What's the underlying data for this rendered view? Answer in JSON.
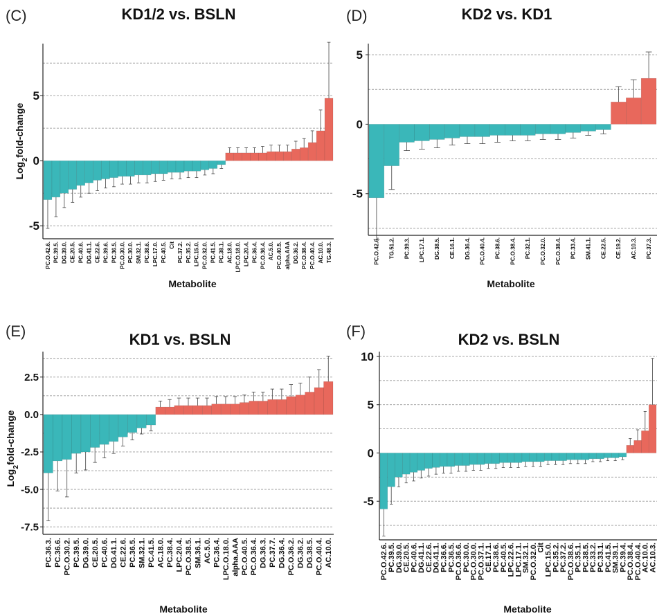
{
  "colors": {
    "negative": "#3ab7b9",
    "positive": "#e8685c",
    "grid": "#9a9a9a",
    "axis": "#222222"
  },
  "chart_data": [
    {
      "panel": "(C)",
      "type": "bar",
      "title": "KD1/2 vs. BSLN",
      "xlabel": "Metabolite",
      "ylabel": "Log2fold-change",
      "yticks": [
        "-5",
        "0",
        "5"
      ],
      "ylim": [
        -6,
        9
      ],
      "grid": true,
      "categories": [
        "PC.O.42.6.",
        "PC.39.5.",
        "DG.39.0.",
        "CE.20.5.",
        "PC.40.6.",
        "DG.41.1.",
        "CE.22.6.",
        "PC.39.6.",
        "PC.36.5.",
        "PC.O.30.0.",
        "PC.30.0.",
        "SM.32.1.",
        "PC.38.6.",
        "LPC.17.0.",
        "PC.40.5.",
        "Cit",
        "PC.37.2.",
        "PC.35.2.",
        "LPC.15.0.",
        "PC.O.32.0.",
        "PC.41.5.",
        "PC.38.1.",
        "AC.18.0.",
        "LPC.O.18.0.",
        "LPC.20.4.",
        "PC.36.4.",
        "PC.O.36.4.",
        "AC.5.0.",
        "PC.O.40.5.",
        "alpha.AAA",
        "DG.36.2.",
        "PC.O.38.4.",
        "PC.O.40.4.",
        "AC.10.0.",
        "TG.48.3."
      ],
      "values": [
        -3.0,
        -2.8,
        -2.5,
        -2.2,
        -1.9,
        -1.7,
        -1.5,
        -1.4,
        -1.3,
        -1.2,
        -1.2,
        -1.1,
        -1.1,
        -1.0,
        -1.0,
        -0.9,
        -0.9,
        -0.8,
        -0.8,
        -0.7,
        -0.6,
        -0.3,
        0.6,
        0.6,
        0.6,
        0.6,
        0.6,
        0.7,
        0.7,
        0.7,
        0.9,
        1.0,
        1.4,
        2.3,
        4.8
      ],
      "errors": [
        2.2,
        1.5,
        1.1,
        1.0,
        0.9,
        0.8,
        0.8,
        0.7,
        0.7,
        0.6,
        0.6,
        0.6,
        0.6,
        0.6,
        0.5,
        0.5,
        0.5,
        0.5,
        0.5,
        0.4,
        0.4,
        0.3,
        0.4,
        0.4,
        0.4,
        0.4,
        0.5,
        0.5,
        0.5,
        0.5,
        0.6,
        0.7,
        0.9,
        1.6,
        4.3
      ]
    },
    {
      "panel": "(D)",
      "type": "bar",
      "title": "KD2 vs. KD1",
      "xlabel": "Metabolite",
      "ylabel": "",
      "yticks": [
        "-5",
        "0",
        "5"
      ],
      "ylim": [
        -8,
        5.8
      ],
      "grid": true,
      "categories": [
        "PC.O.42.6.",
        "TG.51.2.",
        "PC.39.3.",
        "LPC.17.1.",
        "DG.38.5.",
        "CE.16.1.",
        "DG.36.4.",
        "PC.O.40.4.",
        "PC.38.6.",
        "PC.O.38.4.",
        "PC.32.1.",
        "PC.O.32.0.",
        "PC.O.38.4.",
        "PC.33.4.",
        "SM.41.1.",
        "CE.22.5.",
        "CE.19.2.",
        "AC.10.3.",
        "PC.37.3."
      ],
      "values": [
        -5.3,
        -3.0,
        -1.3,
        -1.2,
        -1.1,
        -1.0,
        -0.9,
        -0.9,
        -0.8,
        -0.8,
        -0.8,
        -0.7,
        -0.7,
        -0.6,
        -0.5,
        -0.4,
        1.6,
        1.9,
        3.3
      ],
      "errors": [
        3.0,
        1.7,
        0.6,
        0.6,
        0.6,
        0.5,
        0.5,
        0.5,
        0.5,
        0.4,
        0.4,
        0.4,
        0.4,
        0.4,
        0.3,
        0.3,
        1.1,
        1.3,
        1.9
      ]
    },
    {
      "panel": "(E)",
      "type": "bar",
      "title": "KD1 vs. BSLN",
      "xlabel": "Metabolite",
      "ylabel": "Log2fold-change",
      "yticks": [
        "2.5",
        "0.0",
        "-2.5",
        "-5.0",
        "-7.5"
      ],
      "ylim": [
        -8,
        4.2
      ],
      "grid": true,
      "categories": [
        "PC.36.3.",
        "PC.36.6.",
        "PC.O.30.2.",
        "PC.39.5.",
        "DG.39.0.",
        "CE.20.5.",
        "PC.40.6.",
        "DG.41.1.",
        "CE.22.6.",
        "PC.36.5.",
        "SM.32.1.",
        "PC.41.5.",
        "AC.18.0.",
        "PC.38.4.",
        "LPC.20.4.",
        "PC.O.38.5.",
        "SM.36.1.",
        "AC.5.0.",
        "PC.36.4.",
        "LPC.O.18.0.",
        "alpha.AAA",
        "PC.O.40.5.",
        "PC.O.36.4.",
        "DG.36.3.",
        "PC.37.7.",
        "DG.36.4.",
        "PC.O.36.2.",
        "DG.36.2.",
        "DG.38.5.",
        "PC.O.40.4.",
        "AC.10.0."
      ],
      "values": [
        -3.9,
        -3.1,
        -3.0,
        -2.6,
        -2.5,
        -2.2,
        -2.0,
        -1.8,
        -1.5,
        -1.2,
        -0.9,
        -0.7,
        0.5,
        0.5,
        0.6,
        0.6,
        0.6,
        0.6,
        0.7,
        0.7,
        0.7,
        0.8,
        0.9,
        0.9,
        1.0,
        1.0,
        1.2,
        1.3,
        1.5,
        1.8,
        2.2
      ],
      "errors": [
        3.2,
        2.0,
        2.5,
        1.3,
        1.2,
        1.0,
        0.9,
        0.8,
        0.6,
        0.5,
        0.4,
        0.4,
        0.4,
        0.5,
        0.5,
        0.5,
        0.5,
        0.5,
        0.5,
        0.5,
        0.5,
        0.5,
        0.6,
        0.6,
        0.7,
        0.7,
        0.8,
        0.8,
        1.0,
        1.2,
        1.7
      ]
    },
    {
      "panel": "(F)",
      "type": "bar",
      "title": "KD2 vs. BSLN",
      "xlabel": "Metabolite",
      "ylabel": "",
      "yticks": [
        "10",
        "5",
        "0",
        "-5"
      ],
      "ylim": [
        -9,
        10.5
      ],
      "grid": true,
      "categories": [
        "PC.O.42.6.",
        "PC.39.5.",
        "DG.39.0.",
        "CE.20.5.",
        "PC.40.6.",
        "DG.41.1.",
        "CE.22.6.",
        "DG.41.1.",
        "PC.36.6.",
        "PC.36.5.",
        "PC.O.36.6.",
        "PC.30.0.",
        "PC.O.30.0.",
        "PC.O.37.1.",
        "CE.17.1.",
        "PC.38.6.",
        "PC.40.5.",
        "LPC.22.6.",
        "LPC.17.1.",
        "SM.32.1.",
        "PC.O.32.0.",
        "Cit",
        "LPC.15.0.",
        "PC.35.2.",
        "PC.37.2.",
        "PC.O.38.6.",
        "PC.35.1.",
        "PC.38.5.",
        "PC.33.2.",
        "PC.33.1.",
        "PC.41.5.",
        "SM.39.1.",
        "PC.39.4.",
        "PC.O.38.4.",
        "PC.O.40.4.",
        "AC.10.0.",
        "AC.10.3."
      ],
      "values": [
        -5.8,
        -3.5,
        -2.5,
        -2.2,
        -2.0,
        -1.8,
        -1.6,
        -1.5,
        -1.4,
        -1.4,
        -1.3,
        -1.3,
        -1.2,
        -1.2,
        -1.1,
        -1.1,
        -1.0,
        -1.0,
        -1.0,
        -0.9,
        -0.9,
        -0.9,
        -0.8,
        -0.8,
        -0.8,
        -0.7,
        -0.7,
        -0.7,
        -0.6,
        -0.6,
        -0.5,
        -0.5,
        -0.4,
        0.8,
        1.3,
        2.3,
        5.0
      ],
      "errors": [
        2.8,
        1.8,
        1.0,
        0.9,
        0.9,
        0.8,
        0.8,
        0.7,
        0.7,
        0.7,
        0.6,
        0.6,
        0.6,
        0.6,
        0.5,
        0.5,
        0.5,
        0.5,
        0.5,
        0.5,
        0.5,
        0.5,
        0.4,
        0.4,
        0.4,
        0.4,
        0.4,
        0.4,
        0.3,
        0.3,
        0.3,
        0.3,
        0.3,
        0.7,
        1.1,
        2.0,
        4.8
      ]
    }
  ]
}
